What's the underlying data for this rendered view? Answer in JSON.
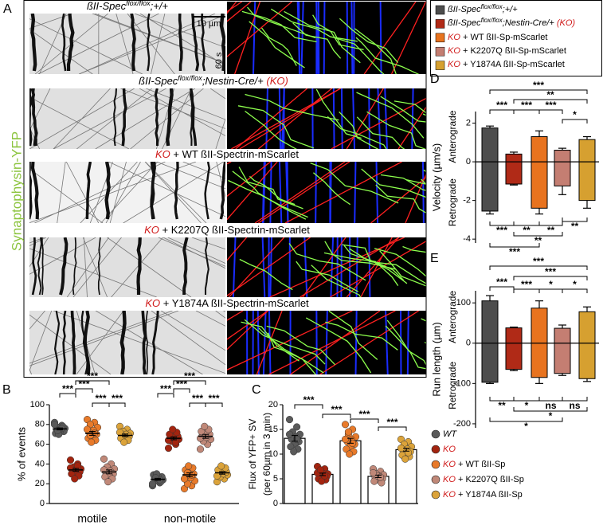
{
  "panel_a": {
    "label": "A",
    "ylabel": "Synaptophysin-YFP",
    "scale_x": "10 µm",
    "scale_t": "60 s",
    "rows": [
      [
        "ßII-Spec",
        "flox/flox",
        ";+/+"
      ],
      [
        "ßII-Spec",
        "flox/flox",
        ";Nestin-Cre/+ ",
        "(KO)"
      ],
      [
        "KO",
        " + WT ßII-Spectrin-mScarlet"
      ],
      [
        "KO",
        " + K2207Q ßII-Spectrin-mScarlet"
      ],
      [
        "KO",
        " + Y1874A ßII-Spectrin-mScarlet"
      ]
    ]
  },
  "legend_top": {
    "entries": [
      {
        "color": "#4d4d4d",
        "text": [
          "ßII-Spec",
          "flox/flox",
          ";+/+"
        ]
      },
      {
        "color": "#b02a17",
        "text": [
          "ßII-Spec",
          "flox/flox",
          ";Nestin-Cre/+ ",
          "(KO)"
        ]
      },
      {
        "color": "#e8731f",
        "text": [
          "KO",
          " + WT ßII-Sp-mScarlet"
        ]
      },
      {
        "color": "#c47e72",
        "text": [
          "KO",
          " + K2207Q ßII-Sp-mScarlet"
        ]
      },
      {
        "color": "#d6a030",
        "text": [
          "KO",
          " + Y1874A ßII-Sp-mScarlet"
        ]
      }
    ]
  },
  "legend_bottom": {
    "entries": [
      {
        "color": "#5a5a5a",
        "text": [
          "WT"
        ]
      },
      {
        "color": "#a3240f",
        "text": [
          "KO"
        ]
      },
      {
        "color": "#e87a2a",
        "text": [
          "KO",
          " + WT ßII-Sp"
        ]
      },
      {
        "color": "#c08878",
        "text": [
          "KO",
          " + K2207Q ßII-Sp"
        ]
      },
      {
        "color": "#dba33a",
        "text": [
          "KO",
          " + Y1874A ßII-Sp"
        ]
      }
    ]
  },
  "chart_data": [
    {
      "label": "B",
      "type": "dotplot",
      "ylabel": "% of events",
      "categories": [
        "motile",
        "non-motile"
      ],
      "ylim": [
        0,
        100
      ],
      "yticks": [
        0,
        20,
        40,
        60,
        80,
        100
      ],
      "series": [
        {
          "color": "#5a5a5a",
          "values": [
            75.5,
            24.5
          ],
          "errors": [
            1,
            1
          ],
          "points": [
            [
              82,
              79,
              77,
              76,
              75,
              74,
              73,
              72,
              71,
              78,
              70,
              80,
              76,
              74
            ],
            [
              18,
              21,
              23,
              24,
              25,
              26,
              27,
              28,
              29,
              22,
              30,
              20,
              24,
              26
            ]
          ]
        },
        {
          "color": "#a3240f",
          "values": [
            34,
            66
          ],
          "errors": [
            1.5,
            1.5
          ],
          "points": [
            [
              44,
              40,
              37,
              35,
              34,
              33,
              32,
              31,
              30,
              28,
              25,
              36,
              38
            ],
            [
              56,
              60,
              63,
              65,
              66,
              67,
              68,
              69,
              70,
              72,
              75,
              64,
              62
            ]
          ]
        },
        {
          "color": "#e87a2a",
          "values": [
            71,
            29
          ],
          "errors": [
            2,
            2
          ],
          "points": [
            [
              85,
              82,
              80,
              77,
              74,
              72,
              70,
              68,
              66,
              64,
              62,
              75,
              71,
              69
            ],
            [
              15,
              18,
              20,
              23,
              26,
              28,
              30,
              32,
              34,
              36,
              38,
              25,
              29,
              31
            ]
          ]
        },
        {
          "color": "#c08878",
          "values": [
            32,
            68
          ],
          "errors": [
            2,
            2
          ],
          "points": [
            [
              45,
              40,
              37,
              35,
              33,
              31,
              30,
              29,
              27,
              25,
              22,
              34
            ],
            [
              55,
              60,
              63,
              65,
              67,
              69,
              70,
              71,
              73,
              75,
              78,
              66
            ]
          ]
        },
        {
          "color": "#dba33a",
          "values": [
            69,
            31
          ],
          "errors": [
            1.3,
            1.3
          ],
          "points": [
            [
              78,
              75,
              73,
              71,
              70,
              69,
              68,
              67,
              66,
              64,
              62,
              72
            ],
            [
              22,
              25,
              27,
              29,
              30,
              31,
              32,
              33,
              34,
              36,
              38,
              28
            ]
          ]
        }
      ],
      "annotations": [
        "***",
        "***",
        "***",
        "***",
        "***",
        "***",
        "***",
        "***",
        "***",
        "***"
      ]
    },
    {
      "label": "C",
      "type": "bar",
      "ylabel": [
        "Flux of YFP+ SV",
        "(per 60µm in 3 min)"
      ],
      "ylim": [
        0,
        20
      ],
      "yticks": [
        0,
        5,
        10,
        15,
        20
      ],
      "series": [
        {
          "color": "#5a5a5a",
          "values": [
            13.2
          ],
          "errors": [
            0.6
          ],
          "points": [
            [
              17,
              15.5,
              14.5,
              14,
              13.5,
              13,
              12.5,
              12,
              11.5,
              11,
              10.5,
              14,
              13
            ]
          ]
        },
        {
          "color": "#a3240f",
          "values": [
            5.9
          ],
          "errors": [
            0.25
          ],
          "points": [
            [
              7.5,
              7,
              6.5,
              6,
              6,
              5.8,
              5.5,
              5.2,
              5,
              4.8,
              4.5,
              6.2,
              5.6,
              6.8
            ]
          ]
        },
        {
          "color": "#e87a2a",
          "values": [
            12.7
          ],
          "errors": [
            0.5
          ],
          "points": [
            [
              16,
              15,
              14,
              13.5,
              13,
              12.5,
              12,
              11.5,
              11,
              10.5,
              10,
              13,
              12.2,
              14.5
            ]
          ]
        },
        {
          "color": "#c08878",
          "values": [
            5.5
          ],
          "errors": [
            0.25
          ],
          "points": [
            [
              7,
              6.5,
              6,
              5.8,
              5.5,
              5.2,
              5,
              4.8,
              4.5,
              4.2,
              5.6,
              6.2,
              5.3
            ]
          ]
        },
        {
          "color": "#dba33a",
          "values": [
            10.9
          ],
          "errors": [
            0.3
          ],
          "points": [
            [
              13,
              12.5,
              12,
              11.5,
              11,
              10.8,
              10.5,
              10,
              9.8,
              9.5,
              9,
              11.2,
              10.3
            ]
          ]
        }
      ],
      "annotations": [
        "***",
        "***",
        "***",
        "***"
      ]
    },
    {
      "label": "D",
      "type": "box",
      "ylabel": "Velocity (µm/s)",
      "direction_labels": [
        "Anterograde",
        "Retrograde"
      ],
      "ylim": [
        -4.2,
        2.6
      ],
      "yticks": [
        -4,
        -2,
        0,
        2
      ],
      "series": [
        {
          "color": "#4d4d4d",
          "whisker_low": -2.7,
          "box_low": -2.55,
          "box_high": 1.75,
          "whisker_high": 1.85
        },
        {
          "color": "#b02a17",
          "whisker_low": -1.2,
          "box_low": -1.15,
          "box_high": 0.4,
          "whisker_high": 0.5
        },
        {
          "color": "#e8731f",
          "whisker_low": -2.7,
          "box_low": -2.4,
          "box_high": 1.3,
          "whisker_high": 1.6
        },
        {
          "color": "#c47e72",
          "whisker_low": -1.7,
          "box_low": -1.25,
          "box_high": 0.6,
          "whisker_high": 0.7
        },
        {
          "color": "#d6a030",
          "whisker_low": -2.4,
          "box_low": -2.0,
          "box_high": 1.15,
          "whisker_high": 1.3
        }
      ],
      "annotations": [
        "***",
        "**",
        "***",
        "***",
        "***",
        "*",
        "***",
        "**",
        "**",
        "**",
        "**",
        "***"
      ]
    },
    {
      "label": "E",
      "type": "box",
      "ylabel": "Run length (µm)",
      "direction_labels": [
        "Anterograde",
        "Retrograde"
      ],
      "ylim": [
        -210,
        130
      ],
      "yticks": [
        -200,
        -100,
        0,
        100
      ],
      "series": [
        {
          "color": "#4d4d4d",
          "whisker_low": -100,
          "box_low": -97,
          "box_high": 105,
          "whisker_high": 118
        },
        {
          "color": "#b02a17",
          "whisker_low": -68,
          "box_low": -65,
          "box_high": 38,
          "whisker_high": 40
        },
        {
          "color": "#e8731f",
          "whisker_low": -100,
          "box_low": -85,
          "box_high": 87,
          "whisker_high": 105
        },
        {
          "color": "#c47e72",
          "whisker_low": -80,
          "box_low": -75,
          "box_high": 37,
          "whisker_high": 45
        },
        {
          "color": "#d6a030",
          "whisker_low": -95,
          "box_low": -88,
          "box_high": 78,
          "whisker_high": 90
        }
      ],
      "annotations": [
        "***",
        "***",
        "***",
        "***",
        "*",
        "*",
        "**",
        "*",
        "ns",
        "ns",
        "*",
        "*"
      ]
    }
  ]
}
